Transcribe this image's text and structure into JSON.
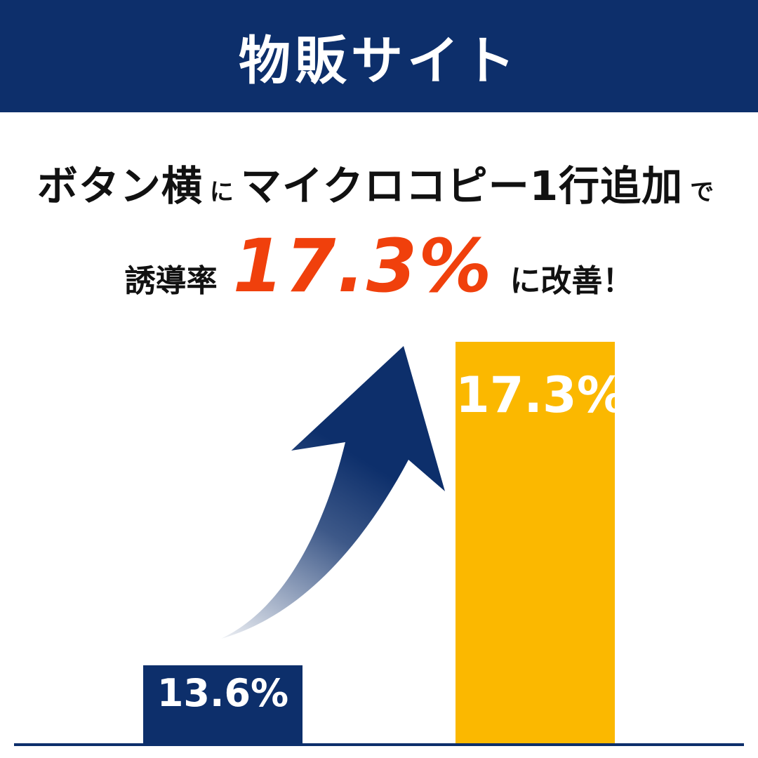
{
  "header": {
    "title": "物販サイト"
  },
  "headline": {
    "part1": "ボタン横",
    "part2": "に",
    "part3": "マイクロコピー1行追加",
    "part4": "で"
  },
  "result": {
    "prefix": "誘導率",
    "value": "17.3%",
    "suffix": "に改善！"
  },
  "colors": {
    "header_bg": "#0d2f6b",
    "before_bar": "#0d2f6b",
    "after_bar": "#fbb800",
    "accent": "#f0400c",
    "arrow": "#0d2f6b"
  },
  "chart_data": {
    "type": "bar",
    "categories": [
      "",
      ""
    ],
    "values": [
      13.6,
      17.3
    ],
    "data_labels": [
      "13.6%",
      "17.3%"
    ],
    "ylim": [
      12.7,
      17.3
    ],
    "grid": false,
    "legend": "none"
  }
}
